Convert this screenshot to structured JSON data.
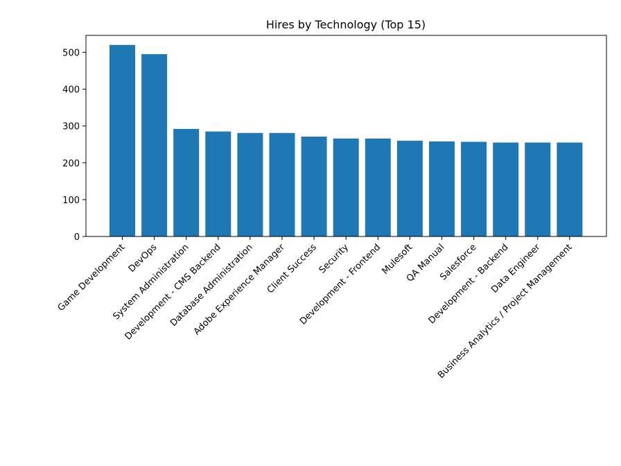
{
  "chart_data": {
    "type": "bar",
    "title": "Hires by Technology (Top 15)",
    "xlabel": "",
    "ylabel": "",
    "categories": [
      "Game Development",
      "DevOps",
      "System Administration",
      "Development - CMS Backend",
      "Database Administration",
      "Adobe Experience Manager",
      "Client Success",
      "Security",
      "Development - Frontend",
      "Mulesoft",
      "QA Manual",
      "Salesforce",
      "Development - Backend",
      "Data Engineer",
      "Business Analytics / Project Management"
    ],
    "values": [
      520,
      495,
      292,
      285,
      281,
      281,
      271,
      266,
      266,
      260,
      258,
      257,
      255,
      255,
      255
    ],
    "ylim": [
      0,
      546
    ],
    "yticks": [
      "0",
      "100",
      "200",
      "300",
      "400",
      "500"
    ],
    "bar_color": "#1f77b4",
    "grid": false,
    "legend": "none"
  }
}
